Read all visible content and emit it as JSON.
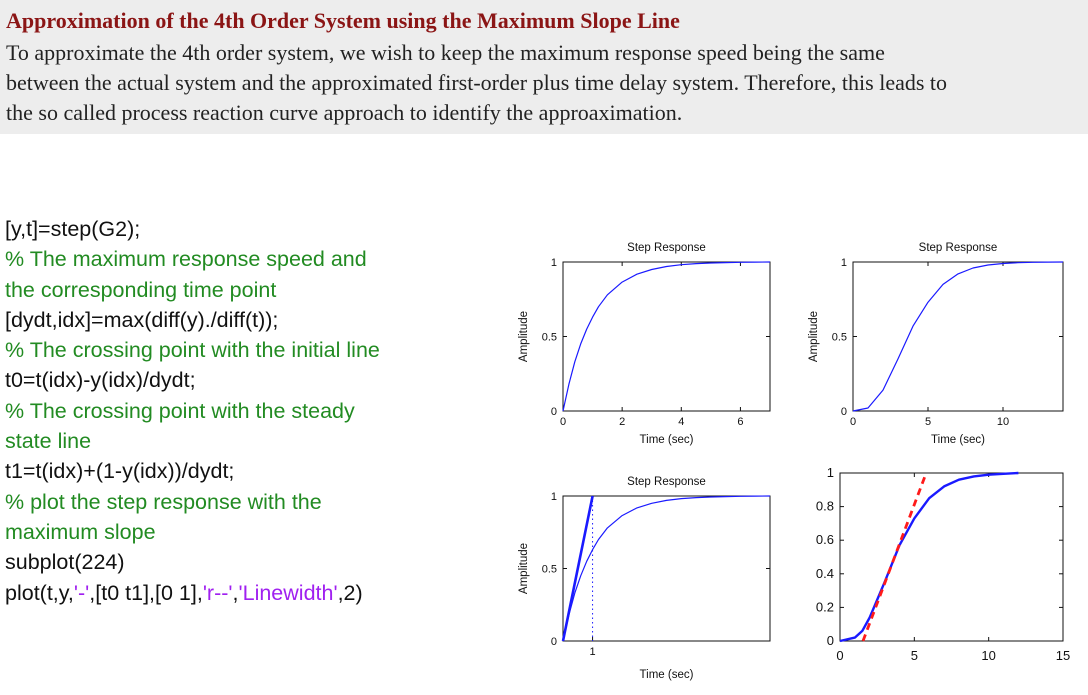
{
  "header": {
    "title": "Approximation of the 4th Order System using the Maximum Slope Line",
    "paragraph_lines": [
      "To approximate the 4th order system, we wish to keep the maximum response speed being the same",
      "between the actual system and the approximated first-order plus time delay system. Therefore, this leads to",
      "the so called process reaction curve approach to identify the approaximation."
    ]
  },
  "code": {
    "lines": [
      [
        {
          "t": "[y,t]=step(G2);",
          "k": "code"
        }
      ],
      [
        {
          "t": "% The maximum response speed and",
          "k": "comment"
        }
      ],
      [
        {
          "t": "the corresponding time point",
          "k": "comment"
        }
      ],
      [
        {
          "t": "[dydt,idx]=max(diff(y)./diff(t));",
          "k": "code"
        }
      ],
      [
        {
          "t": "% The crossing point with the initial line",
          "k": "comment"
        }
      ],
      [
        {
          "t": "t0=t(idx)-y(idx)/dydt;",
          "k": "code"
        }
      ],
      [
        {
          "t": "% The crossing point with the steady",
          "k": "comment"
        }
      ],
      [
        {
          "t": "state line",
          "k": "comment"
        }
      ],
      [
        {
          "t": "t1=t(idx)+(1-y(idx))/dydt;",
          "k": "code"
        }
      ],
      [
        {
          "t": "% plot the step response with the",
          "k": "comment"
        }
      ],
      [
        {
          "t": "maximum slope",
          "k": "comment"
        }
      ],
      [
        {
          "t": "subplot(224)",
          "k": "code"
        }
      ],
      [
        {
          "t": "plot(t,y,",
          "k": "code"
        },
        {
          "t": "'-'",
          "k": "string"
        },
        {
          "t": ",[t0 t1],[0 1],",
          "k": "code"
        },
        {
          "t": "'r--'",
          "k": "string"
        },
        {
          "t": ",",
          "k": "code"
        },
        {
          "t": "'Linewidth'",
          "k": "string"
        },
        {
          "t": ",2)",
          "k": "code"
        }
      ]
    ]
  },
  "colors": {
    "code": "#111111",
    "comment": "#228b22",
    "string": "#a020f0",
    "curve": "#1a1aff",
    "dash": "#ff1a1a"
  },
  "chart_data": [
    {
      "type": "line",
      "title": "Step Response",
      "xlabel": "Time (sec)",
      "ylabel": "Amplitude",
      "xlim": [
        0,
        7
      ],
      "ylim": [
        0,
        1
      ],
      "xticks": [
        "0",
        "2",
        "4",
        "6"
      ],
      "yticks": [
        "0",
        "0.5",
        "1"
      ],
      "series": [
        {
          "x": [
            0,
            0.2,
            0.4,
            0.6,
            0.8,
            1,
            1.2,
            1.5,
            2,
            2.5,
            3,
            3.5,
            4,
            4.5,
            5,
            5.5,
            6,
            6.5,
            7
          ],
          "y": [
            0,
            0.18,
            0.33,
            0.45,
            0.55,
            0.63,
            0.7,
            0.78,
            0.865,
            0.918,
            0.95,
            0.97,
            0.982,
            0.989,
            0.993,
            0.996,
            0.998,
            0.999,
            1
          ]
        }
      ]
    },
    {
      "type": "line",
      "title": "Step Response",
      "xlabel": "Time (sec)",
      "ylabel": "Amplitude",
      "xlim": [
        0,
        14
      ],
      "ylim": [
        0,
        1
      ],
      "xticks": [
        "0",
        "5",
        "10"
      ],
      "yticks": [
        "0",
        "0.5",
        "1"
      ],
      "series": [
        {
          "x": [
            0,
            1,
            2,
            3,
            4,
            5,
            6,
            7,
            8,
            9,
            10,
            11,
            12,
            13,
            14
          ],
          "y": [
            0,
            0.02,
            0.14,
            0.35,
            0.57,
            0.73,
            0.85,
            0.92,
            0.96,
            0.98,
            0.99,
            0.995,
            0.998,
            0.999,
            1
          ]
        }
      ]
    },
    {
      "type": "line",
      "title": "Step Response",
      "xlabel": "Time (sec)",
      "ylabel": "Amplitude",
      "xlim": [
        0,
        7
      ],
      "ylim": [
        0,
        1
      ],
      "xticks": [
        "1"
      ],
      "yticks": [
        "0",
        "0.5",
        "1"
      ],
      "series": [
        {
          "x": [
            0,
            0.2,
            0.4,
            0.6,
            0.8,
            1,
            1.2,
            1.5,
            2,
            2.5,
            3,
            3.5,
            4,
            4.5,
            5,
            5.5,
            6,
            6.5,
            7
          ],
          "y": [
            0,
            0.18,
            0.33,
            0.45,
            0.55,
            0.63,
            0.7,
            0.78,
            0.865,
            0.918,
            0.95,
            0.97,
            0.982,
            0.989,
            0.993,
            0.996,
            0.998,
            0.999,
            1
          ]
        },
        {
          "x": [
            0,
            1
          ],
          "y": [
            0,
            1
          ]
        }
      ],
      "vline_x": 1
    },
    {
      "type": "line",
      "title": "",
      "xlabel": "",
      "ylabel": "",
      "xlim": [
        0,
        15
      ],
      "ylim": [
        0,
        1
      ],
      "xticks": [
        "0",
        "5",
        "10",
        "15"
      ],
      "yticks": [
        "0",
        "0.2",
        "0.4",
        "0.6",
        "0.8",
        "1"
      ],
      "series": [
        {
          "x": [
            0,
            1,
            1.5,
            2,
            3,
            4,
            5,
            6,
            7,
            8,
            9,
            10,
            11,
            12
          ],
          "y": [
            0,
            0.02,
            0.06,
            0.14,
            0.35,
            0.57,
            0.73,
            0.85,
            0.92,
            0.96,
            0.98,
            0.99,
            0.995,
            1
          ]
        },
        {
          "x": [
            1.55,
            5.8
          ],
          "y": [
            0,
            1
          ]
        }
      ]
    }
  ]
}
